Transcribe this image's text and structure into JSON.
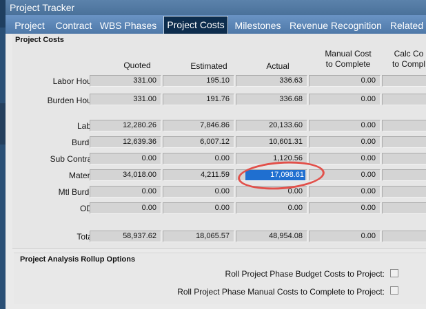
{
  "window": {
    "title": "Project Tracker"
  },
  "tabs": [
    {
      "label": "Project",
      "active": false
    },
    {
      "label": "Contract",
      "active": false
    },
    {
      "label": "WBS Phases",
      "active": false
    },
    {
      "label": "Project Costs",
      "active": true
    },
    {
      "label": "Milestones",
      "active": false
    },
    {
      "label": "Revenue Recognition",
      "active": false
    },
    {
      "label": "Related",
      "active": false
    }
  ],
  "costs": {
    "title": "Project Costs",
    "columns": [
      "Quoted",
      "Estimated",
      "Actual",
      "Manual Cost to Complete",
      "Calc Co to Compl"
    ],
    "rows": [
      {
        "label": "Labor Hours:",
        "values": [
          "331.00",
          "195.10",
          "336.63",
          "0.00",
          ""
        ]
      },
      {
        "label": "Burden Hours:",
        "values": [
          "331.00",
          "191.76",
          "336.68",
          "0.00",
          ""
        ]
      },
      {
        "label": "Labor:",
        "values": [
          "12,280.26",
          "7,846.86",
          "20,133.60",
          "0.00",
          ""
        ]
      },
      {
        "label": "Burden:",
        "values": [
          "12,639.36",
          "6,007.12",
          "10,601.31",
          "0.00",
          ""
        ]
      },
      {
        "label": "Sub Contract:",
        "values": [
          "0.00",
          "0.00",
          "1,120.56",
          "0.00",
          ""
        ]
      },
      {
        "label": "Material:",
        "values": [
          "34,018.00",
          "4,211.59",
          "17,098.61",
          "0.00",
          ""
        ]
      },
      {
        "label": "Mtl Burden:",
        "values": [
          "0.00",
          "0.00",
          "0.00",
          "0.00",
          ""
        ]
      },
      {
        "label": "ODC:",
        "values": [
          "0.00",
          "0.00",
          "0.00",
          "0.00",
          ""
        ]
      },
      {
        "label": "Totals:",
        "values": [
          "58,937.62",
          "18,065.57",
          "48,954.08",
          "0.00",
          ""
        ]
      }
    ]
  },
  "rollup": {
    "title": "Project Analysis Rollup Options",
    "options": [
      {
        "label": "Roll Project Phase Budget Costs to Project:",
        "checked": false
      },
      {
        "label": "Roll Project Phase Manual Costs to Complete to Project:",
        "checked": false
      }
    ]
  },
  "colors": {
    "highlight": "#e2504a",
    "selection": "#1f6fd0",
    "tab_active": "#0d2d4d"
  }
}
